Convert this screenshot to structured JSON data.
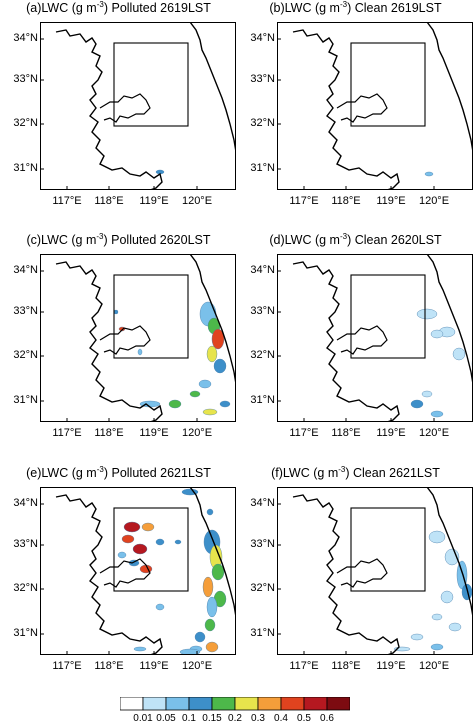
{
  "panels": [
    {
      "label": "(a)",
      "var": "LWC (g m",
      "unit_exp": "-3",
      "tail": ") Polluted 2619LST",
      "key": "a"
    },
    {
      "label": "(b)",
      "var": "LWC (g m",
      "unit_exp": "-3",
      "tail": ") Clean 2619LST",
      "key": "b"
    },
    {
      "label": "(c)",
      "var": "LWC (g m",
      "unit_exp": "-3",
      "tail": ") Polluted 2620LST",
      "key": "c"
    },
    {
      "label": "(d)",
      "var": "LWC (g m",
      "unit_exp": "-3",
      "tail": ") Clean 2620LST",
      "key": "d"
    },
    {
      "label": "(e)",
      "var": "LWC (g m",
      "unit_exp": "-3",
      "tail": ") Polluted 2621LST",
      "key": "e"
    },
    {
      "label": "(f)",
      "var": "LWC (g m",
      "unit_exp": "-3",
      "tail": ") Clean 2621LST",
      "key": "f"
    }
  ],
  "lat_ticks": [
    "34°N",
    "33°N",
    "32°N",
    "31°N"
  ],
  "lon_ticks": [
    "117°E",
    "118°E",
    "119°E",
    "120°E"
  ],
  "colorbar": {
    "labels": [
      "0.01",
      "0.05",
      "0.1",
      "0.15",
      "0.2",
      "0.3",
      "0.4",
      "0.5",
      "0.6"
    ],
    "colors": [
      "#ffffff",
      "#bfe3f7",
      "#7ac0ea",
      "#3d8fc9",
      "#4db84a",
      "#e7e44c",
      "#f59e3a",
      "#e0431f",
      "#b51820",
      "#7d0b11"
    ]
  }
}
